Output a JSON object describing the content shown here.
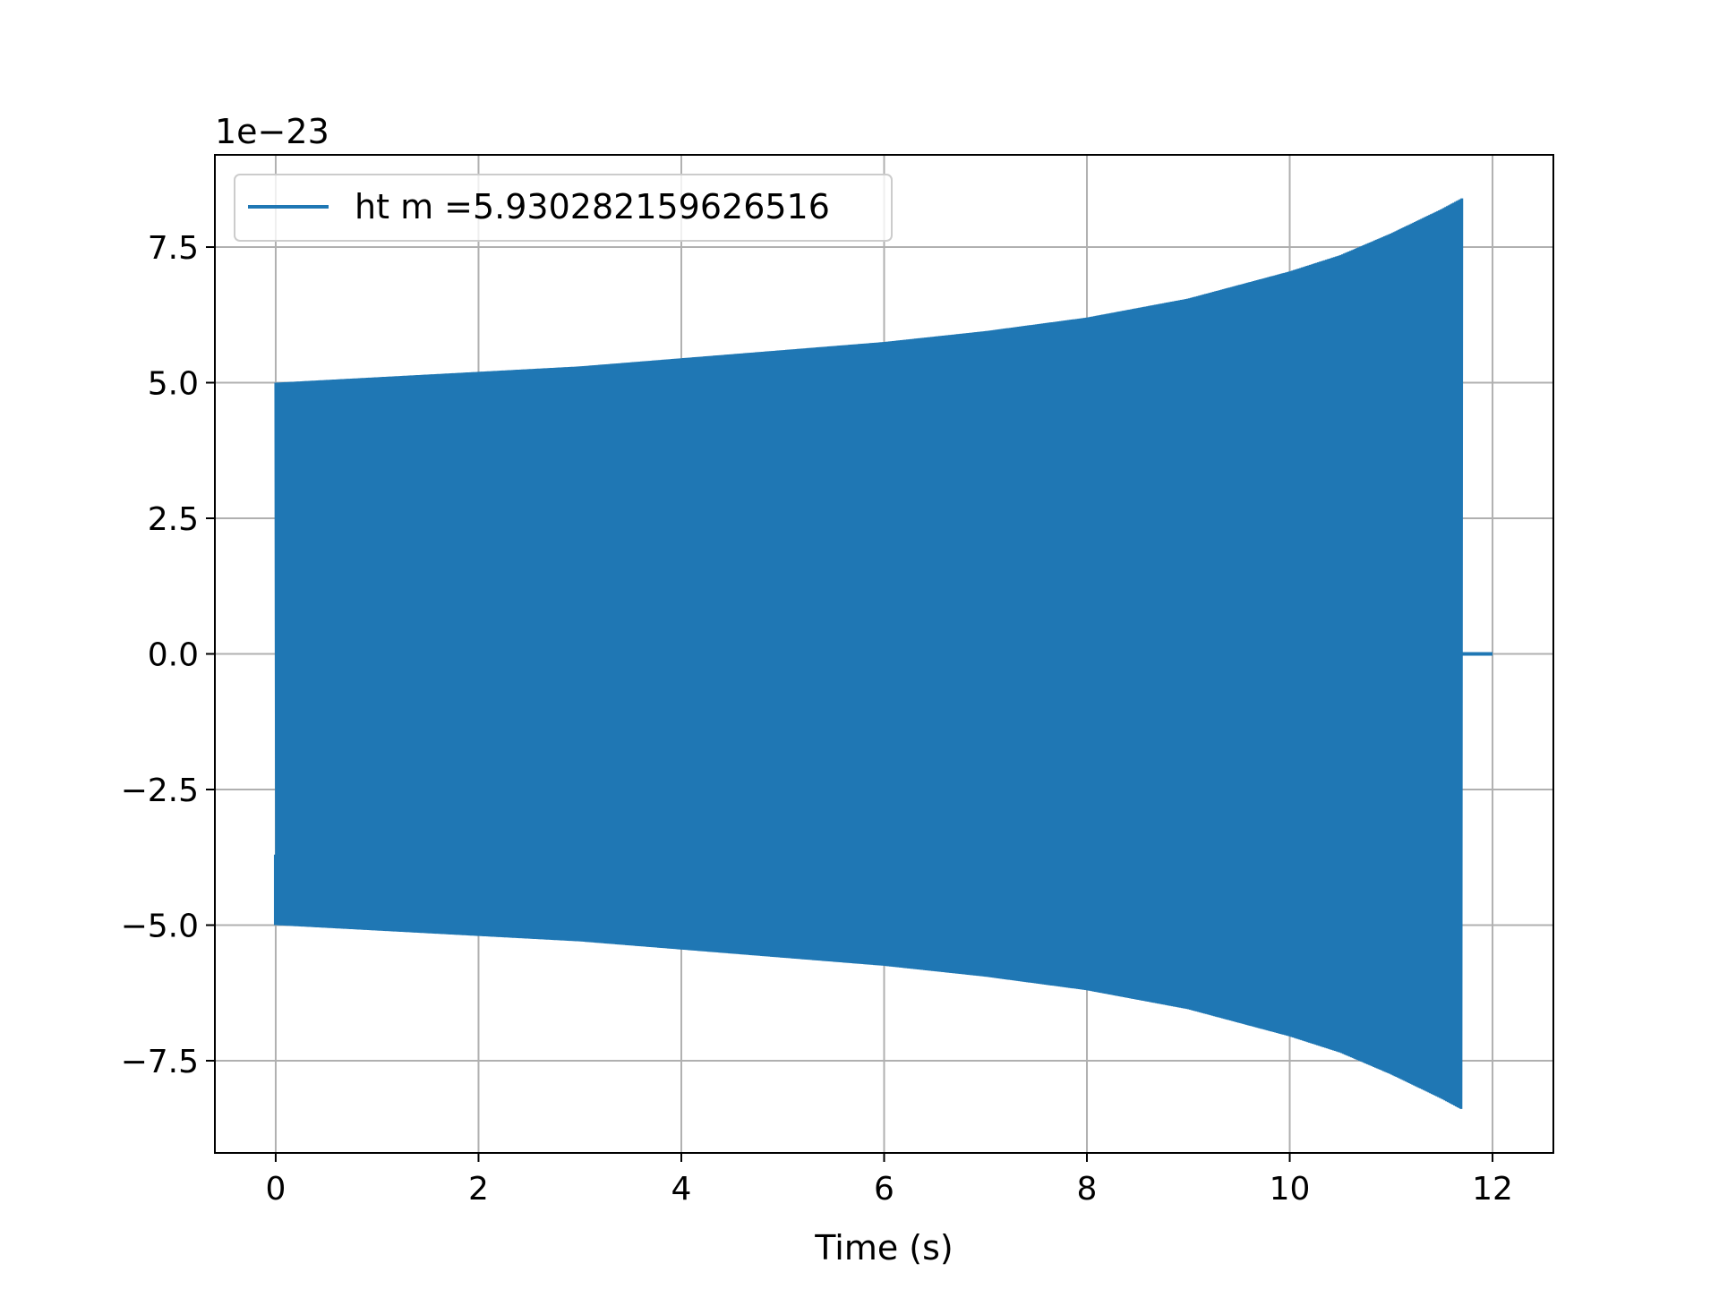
{
  "chart_data": {
    "type": "line",
    "title": "",
    "xlabel": "Time (s)",
    "ylabel": "",
    "y_offset_text": "1e−23",
    "xlim": [
      -0.6,
      12.6
    ],
    "ylim": [
      -9.2,
      9.2
    ],
    "x_ticks": [
      0,
      2,
      4,
      6,
      8,
      10,
      12
    ],
    "x_tick_labels": [
      "0",
      "2",
      "4",
      "6",
      "8",
      "10",
      "12"
    ],
    "y_ticks": [
      -7.5,
      -5.0,
      -2.5,
      0.0,
      2.5,
      5.0,
      7.5
    ],
    "y_tick_labels": [
      "−7.5",
      "−5.0",
      "−2.5",
      "0.0",
      "2.5",
      "5.0",
      "7.5"
    ],
    "grid": true,
    "legend_position": "upper-left",
    "series": [
      {
        "name": "ht m =5.930282159626516",
        "color": "#1f77b4",
        "style": "dense-oscillation",
        "chirp_end_time": 11.7,
        "signal_end_time": 12.0,
        "envelope": {
          "t": [
            0,
            1,
            2,
            3,
            4,
            5,
            6,
            7,
            8,
            9,
            10,
            10.5,
            11,
            11.5,
            11.7
          ],
          "amplitude": [
            5.0,
            5.1,
            5.2,
            5.3,
            5.45,
            5.6,
            5.75,
            5.95,
            6.2,
            6.55,
            7.05,
            7.35,
            7.75,
            8.2,
            8.4
          ]
        }
      }
    ]
  }
}
